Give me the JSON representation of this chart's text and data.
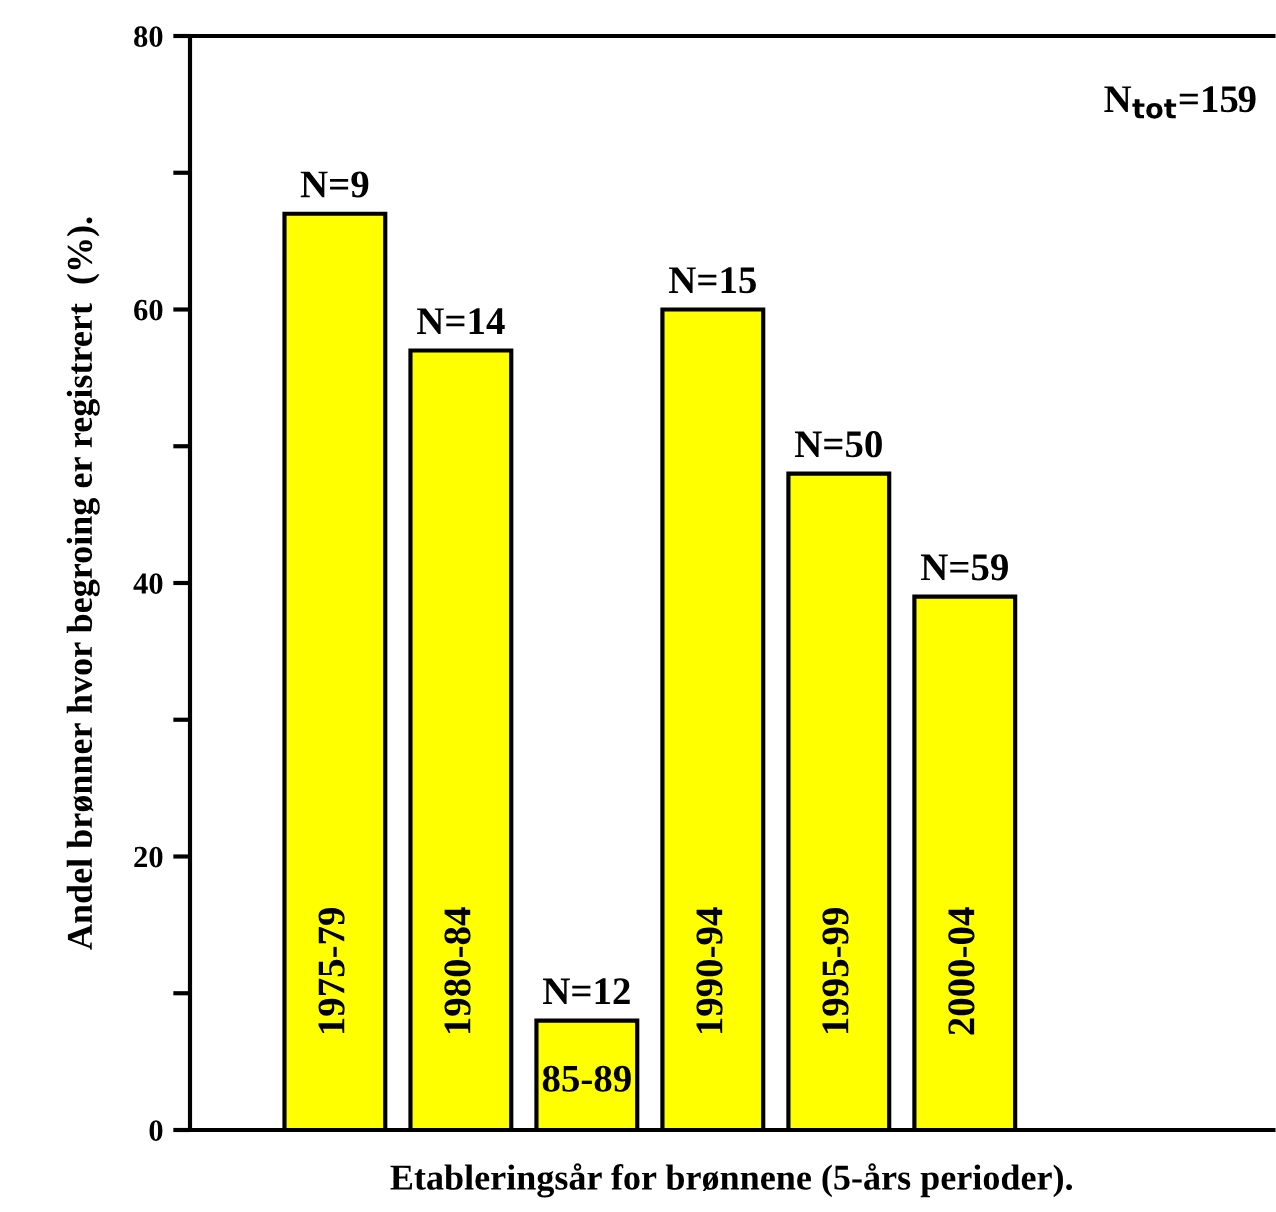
{
  "chart_data": {
    "type": "bar",
    "categories": [
      "1975-79",
      "1980-84",
      "85-89",
      "1990-94",
      "1995-99",
      "2000-04"
    ],
    "values": [
      67,
      57,
      8,
      60,
      48,
      39
    ],
    "color": "#ffff00",
    "xlabel": "Etableringsår for brønnene (5-års perioder).",
    "ylabel": "Andel brønner hvor begroing er registrert  (%).",
    "ylim": [
      0,
      80
    ],
    "yticks": [
      0,
      20,
      40,
      60,
      80
    ],
    "annotations": [
      {
        "text": "N=9",
        "x": "1975-79",
        "y": 67
      },
      {
        "text": "N=14",
        "x": "1980-84",
        "y": 57
      },
      {
        "text": "N=12",
        "x": "85-89",
        "y": 8
      },
      {
        "text": "N=15",
        "x": "1990-94",
        "y": 60
      },
      {
        "text": "N=50",
        "x": "1995-99",
        "y": 48
      },
      {
        "text": "N=59",
        "x": "2000-04",
        "y": 39
      },
      "N$_{tot}$=159"
    ],
    "grid": false,
    "legend": false
  }
}
